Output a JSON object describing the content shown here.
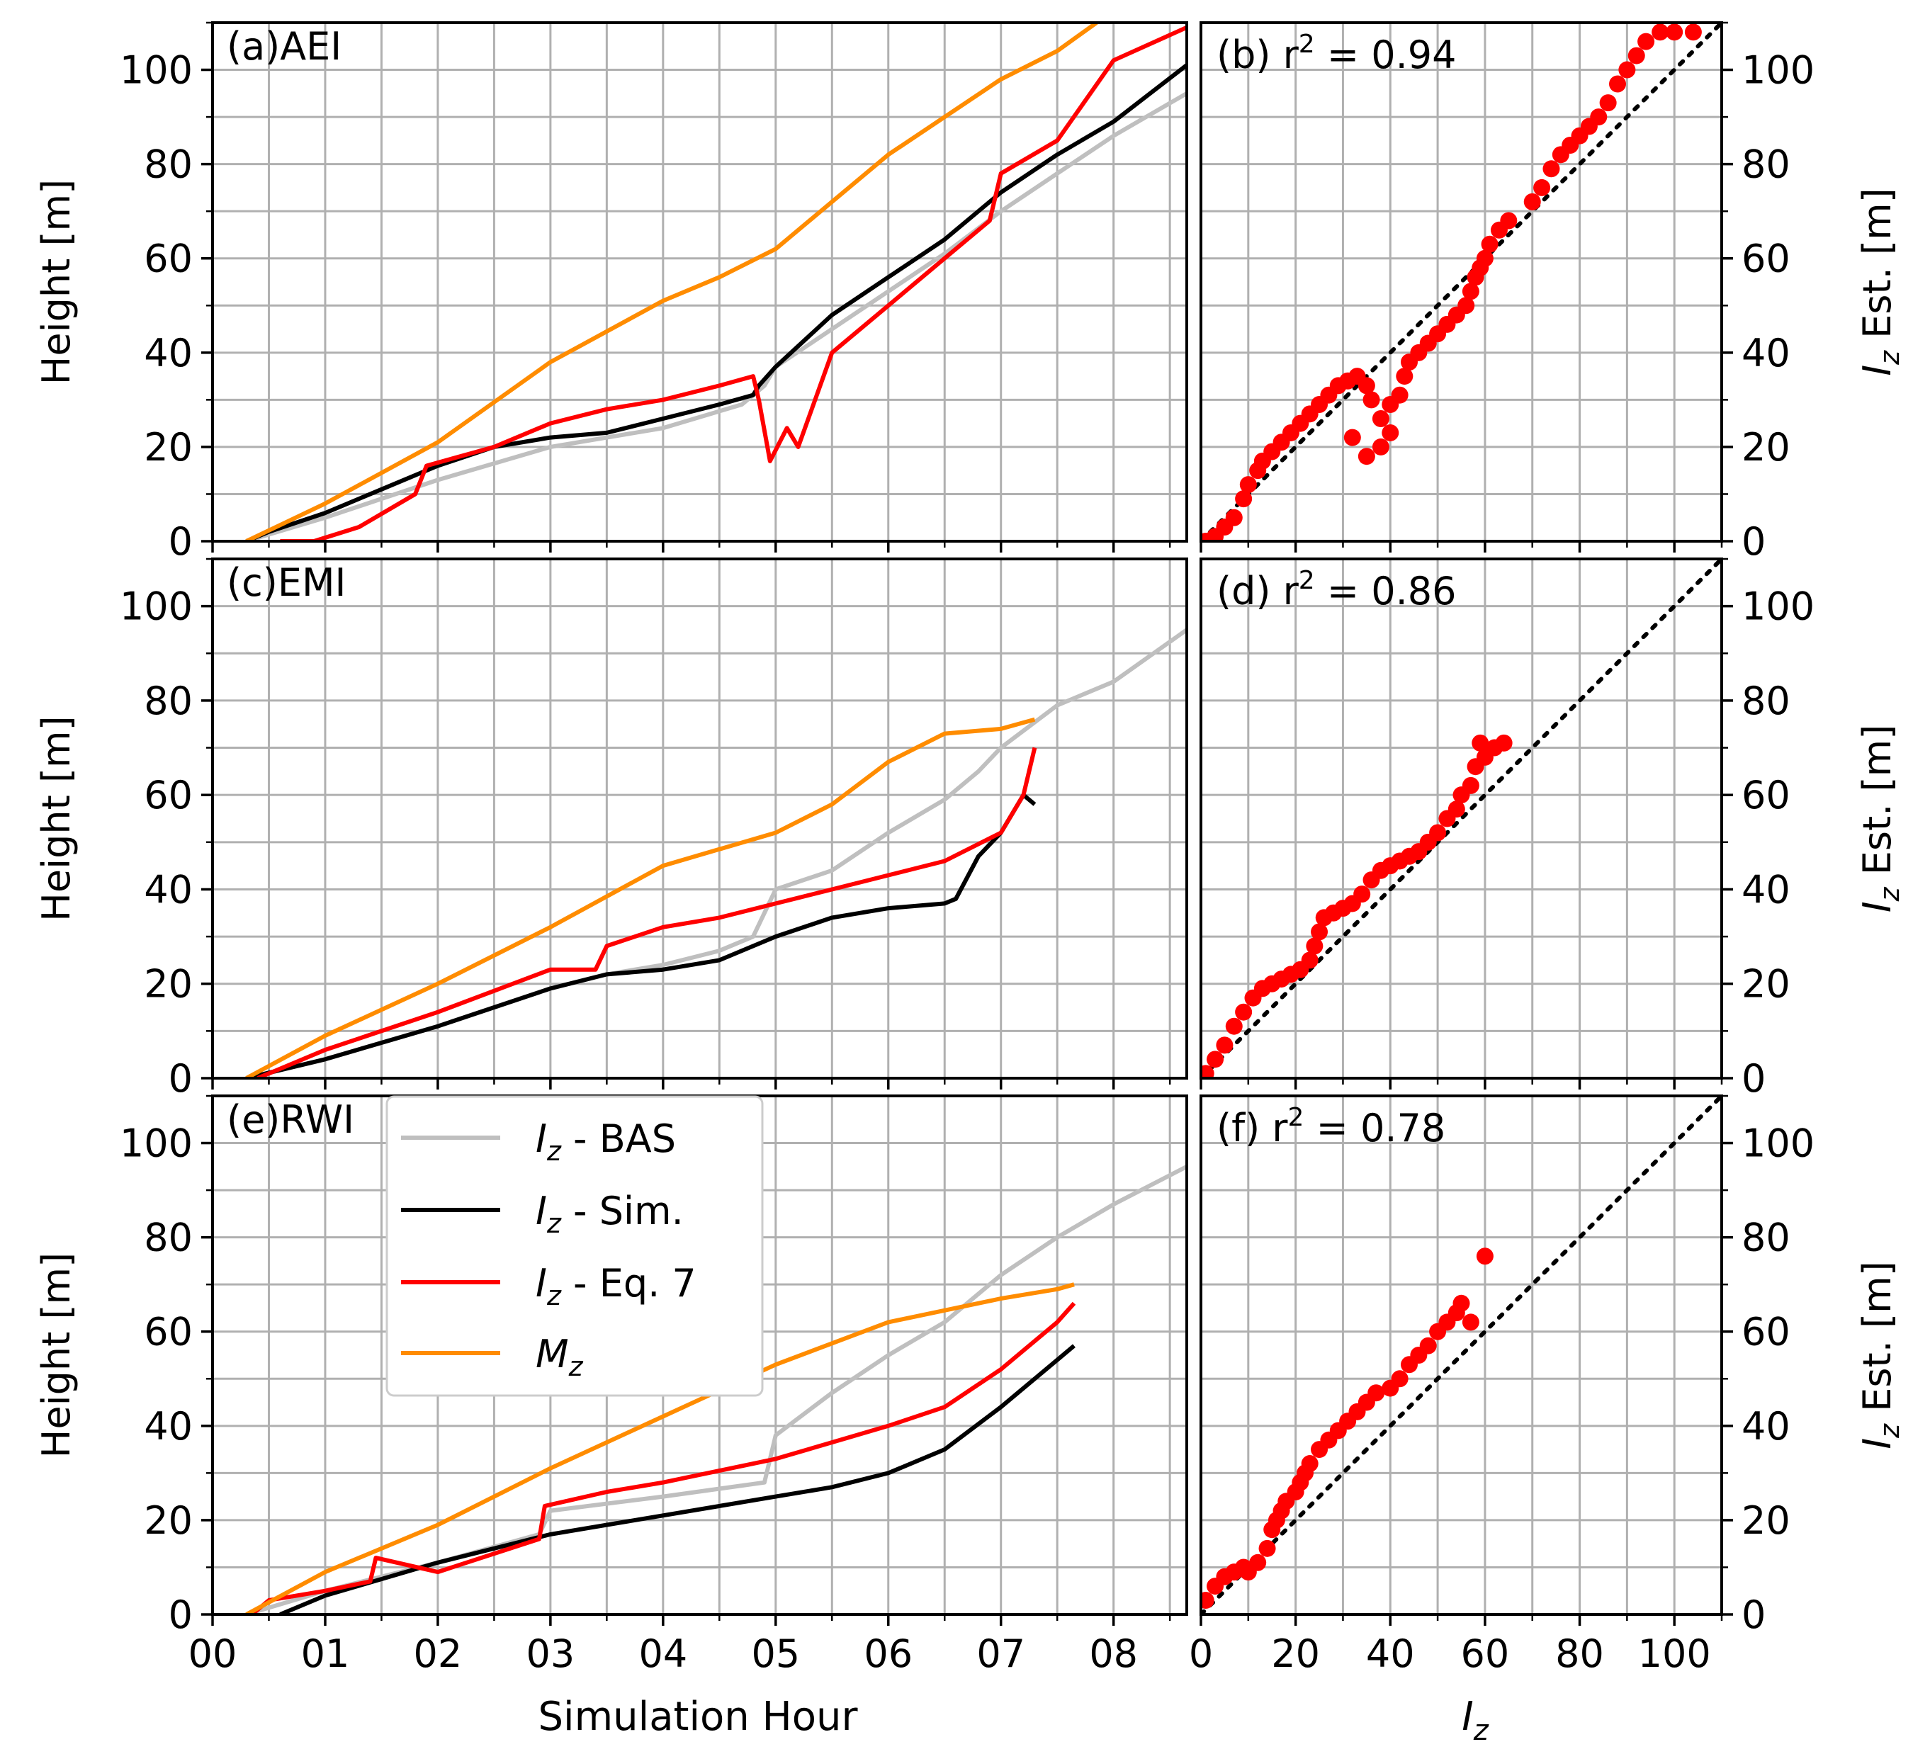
{
  "figure": {
    "xlabel_left": "Simulation Hour",
    "xlabel_right_sym": "I",
    "xlabel_right_sub": "z",
    "ylabel_left": "Height [m]",
    "ylabel_right_sym": "I",
    "ylabel_right_sub": "z",
    "ylabel_right_rest": " Est. [m]",
    "legend": [
      {
        "sym": "I",
        "sub": "z",
        "rest": " - BAS",
        "color": "#bfbfbf"
      },
      {
        "sym": "I",
        "sub": "z",
        "rest": " - Sim.",
        "color": "#000000"
      },
      {
        "sym": "I",
        "sub": "z",
        "rest": " - Eq. 7",
        "color": "#ff0000"
      },
      {
        "sym": "M",
        "sub": "z",
        "rest": "",
        "color": "#ff8c00"
      }
    ],
    "colors": {
      "bas": "#bfbfbf",
      "sim": "#000000",
      "eq7": "#ff0000",
      "mz": "#ff8c00",
      "scatter": "#ff0000",
      "grid": "#b0b0b0"
    }
  },
  "chart_data": [
    {
      "type": "line",
      "panel": "a",
      "title": "(a)AEI",
      "xlabel": "Simulation Hour",
      "ylabel": "Height [m]",
      "xlim": [
        0,
        8.65
      ],
      "ylim": [
        0,
        110
      ],
      "xticks": [
        "00",
        "01",
        "02",
        "03",
        "04",
        "05",
        "06",
        "07",
        "08"
      ],
      "yticks": [
        0,
        20,
        40,
        60,
        80,
        100
      ],
      "series": [
        {
          "name": "Iz - BAS",
          "x": [
            0.3,
            1.0,
            1.5,
            2.0,
            3.0,
            4.0,
            4.7,
            4.9,
            5.0,
            5.5,
            6.0,
            6.5,
            7.0,
            7.5,
            8.0,
            8.65
          ],
          "y": [
            0,
            5,
            9,
            13,
            20,
            24,
            29,
            33,
            37,
            45,
            53,
            61,
            70,
            78,
            86,
            95
          ]
        },
        {
          "name": "Iz - Sim.",
          "x": [
            0.3,
            0.5,
            1.0,
            1.5,
            2.0,
            2.5,
            3.0,
            3.5,
            4.0,
            4.5,
            4.8,
            4.85,
            5.0,
            5.5,
            6.0,
            6.5,
            7.0,
            7.5,
            8.0,
            8.65
          ],
          "y": [
            0,
            2,
            6,
            11,
            16,
            20,
            22,
            23,
            26,
            29,
            31,
            33,
            37,
            48,
            56,
            64,
            74,
            82,
            89,
            101
          ]
        },
        {
          "name": "Iz - Eq. 7",
          "x": [
            0.6,
            0.9,
            1.3,
            1.8,
            1.9,
            2.5,
            3.0,
            3.5,
            4.0,
            4.5,
            4.8,
            4.85,
            4.95,
            5.1,
            5.2,
            5.5,
            6.0,
            6.5,
            6.9,
            7.0,
            7.5,
            8.0,
            8.65
          ],
          "y": [
            0,
            0,
            3,
            10,
            16,
            20,
            25,
            28,
            30,
            33,
            35,
            30,
            17,
            24,
            20,
            40,
            50,
            60,
            68,
            78,
            85,
            102,
            109
          ]
        },
        {
          "name": "Mz",
          "x": [
            0.3,
            1.0,
            2.0,
            3.0,
            4.0,
            4.5,
            5.0,
            6.0,
            7.0,
            7.5,
            7.85
          ],
          "y": [
            0,
            8,
            21,
            38,
            51,
            56,
            62,
            82,
            98,
            104,
            110
          ]
        }
      ]
    },
    {
      "type": "scatter",
      "panel": "b",
      "title": "(b) r² = 0.94",
      "title_prefix": "(b) r",
      "title_sup": "2",
      "title_rest": " = 0.94",
      "xlabel": "Iz",
      "ylabel": "Iz Est. [m]",
      "xlim": [
        0,
        110
      ],
      "ylim": [
        0,
        110
      ],
      "xticks": [
        0,
        20,
        40,
        60,
        80,
        100
      ],
      "yticks": [
        0,
        20,
        40,
        60,
        80,
        100
      ],
      "diagonal": "y = x (dotted)",
      "points": [
        [
          1,
          0
        ],
        [
          3,
          1
        ],
        [
          5,
          3
        ],
        [
          7,
          5
        ],
        [
          9,
          9
        ],
        [
          10,
          12
        ],
        [
          12,
          15
        ],
        [
          13,
          17
        ],
        [
          15,
          19
        ],
        [
          17,
          21
        ],
        [
          19,
          23
        ],
        [
          21,
          25
        ],
        [
          23,
          27
        ],
        [
          25,
          29
        ],
        [
          27,
          31
        ],
        [
          29,
          33
        ],
        [
          31,
          34
        ],
        [
          33,
          35
        ],
        [
          35,
          33
        ],
        [
          36,
          30
        ],
        [
          32,
          22
        ],
        [
          35,
          18
        ],
        [
          38,
          20
        ],
        [
          40,
          23
        ],
        [
          38,
          26
        ],
        [
          40,
          29
        ],
        [
          42,
          31
        ],
        [
          43,
          35
        ],
        [
          44,
          38
        ],
        [
          46,
          40
        ],
        [
          48,
          42
        ],
        [
          50,
          44
        ],
        [
          52,
          46
        ],
        [
          54,
          48
        ],
        [
          56,
          50
        ],
        [
          57,
          53
        ],
        [
          58,
          56
        ],
        [
          59,
          58
        ],
        [
          60,
          60
        ],
        [
          61,
          63
        ],
        [
          63,
          66
        ],
        [
          65,
          68
        ],
        [
          70,
          72
        ],
        [
          72,
          75
        ],
        [
          74,
          79
        ],
        [
          76,
          82
        ],
        [
          78,
          84
        ],
        [
          80,
          86
        ],
        [
          82,
          88
        ],
        [
          84,
          90
        ],
        [
          86,
          93
        ],
        [
          88,
          97
        ],
        [
          90,
          100
        ],
        [
          92,
          103
        ],
        [
          94,
          106
        ],
        [
          97,
          108
        ],
        [
          100,
          108
        ],
        [
          104,
          108
        ]
      ]
    },
    {
      "type": "line",
      "panel": "c",
      "title": "(c)EMI",
      "xlabel": "Simulation Hour",
      "ylabel": "Height [m]",
      "xlim": [
        0,
        8.65
      ],
      "ylim": [
        0,
        110
      ],
      "xticks": [
        "00",
        "01",
        "02",
        "03",
        "04",
        "05",
        "06",
        "07",
        "08"
      ],
      "yticks": [
        0,
        20,
        40,
        60,
        80,
        100
      ],
      "series": [
        {
          "name": "Iz - BAS",
          "x": [
            0.3,
            1.0,
            2.0,
            3.0,
            3.5,
            4.0,
            4.5,
            4.8,
            5.0,
            5.5,
            6.0,
            6.5,
            6.8,
            7.0,
            7.5,
            8.0,
            8.65
          ],
          "y": [
            0,
            4,
            11,
            19,
            22,
            24,
            27,
            30,
            40,
            44,
            52,
            59,
            65,
            70,
            79,
            84,
            95
          ]
        },
        {
          "name": "Iz - Sim.",
          "x": [
            0.3,
            1.0,
            2.0,
            3.0,
            3.5,
            4.0,
            4.5,
            5.0,
            5.5,
            6.0,
            6.5,
            6.6,
            6.8,
            7.0,
            7.2,
            7.3
          ],
          "y": [
            0,
            4,
            11,
            19,
            22,
            23,
            25,
            30,
            34,
            36,
            37,
            38,
            47,
            52,
            60,
            58
          ]
        },
        {
          "name": "Iz - Eq. 7",
          "x": [
            0.4,
            1.0,
            2.0,
            3.0,
            3.4,
            3.5,
            4.0,
            4.5,
            5.0,
            5.5,
            6.0,
            6.5,
            7.0,
            7.2,
            7.3
          ],
          "y": [
            0,
            6,
            14,
            23,
            23,
            28,
            32,
            34,
            37,
            40,
            43,
            46,
            52,
            60,
            70
          ]
        },
        {
          "name": "Mz",
          "x": [
            0.3,
            1.0,
            2.0,
            3.0,
            4.0,
            5.0,
            5.5,
            6.0,
            6.5,
            7.0,
            7.3
          ],
          "y": [
            0,
            9,
            20,
            32,
            45,
            52,
            58,
            67,
            73,
            74,
            76
          ]
        }
      ]
    },
    {
      "type": "scatter",
      "panel": "d",
      "title": "(d) r² = 0.86",
      "title_prefix": "(d) r",
      "title_sup": "2",
      "title_rest": " = 0.86",
      "xlabel": "Iz",
      "ylabel": "Iz Est. [m]",
      "xlim": [
        0,
        110
      ],
      "ylim": [
        0,
        110
      ],
      "xticks": [
        0,
        20,
        40,
        60,
        80,
        100
      ],
      "yticks": [
        0,
        20,
        40,
        60,
        80,
        100
      ],
      "diagonal": "y = x (dotted)",
      "points": [
        [
          1,
          1
        ],
        [
          3,
          4
        ],
        [
          5,
          7
        ],
        [
          7,
          11
        ],
        [
          9,
          14
        ],
        [
          11,
          17
        ],
        [
          13,
          19
        ],
        [
          15,
          20
        ],
        [
          17,
          21
        ],
        [
          19,
          22
        ],
        [
          21,
          23
        ],
        [
          23,
          25
        ],
        [
          24,
          28
        ],
        [
          25,
          31
        ],
        [
          26,
          34
        ],
        [
          28,
          35
        ],
        [
          30,
          36
        ],
        [
          32,
          37
        ],
        [
          34,
          39
        ],
        [
          36,
          42
        ],
        [
          38,
          44
        ],
        [
          40,
          45
        ],
        [
          42,
          46
        ],
        [
          44,
          47
        ],
        [
          46,
          48
        ],
        [
          48,
          50
        ],
        [
          50,
          52
        ],
        [
          52,
          55
        ],
        [
          54,
          57
        ],
        [
          55,
          60
        ],
        [
          57,
          62
        ],
        [
          58,
          66
        ],
        [
          60,
          68
        ],
        [
          62,
          70
        ],
        [
          64,
          71
        ],
        [
          59,
          71
        ]
      ]
    },
    {
      "type": "line",
      "panel": "e",
      "title": "(e)RWI",
      "xlabel": "Simulation Hour",
      "ylabel": "Height [m]",
      "xlim": [
        0,
        8.65
      ],
      "ylim": [
        0,
        110
      ],
      "xticks": [
        "00",
        "01",
        "02",
        "03",
        "04",
        "05",
        "06",
        "07",
        "08"
      ],
      "yticks": [
        0,
        20,
        40,
        60,
        80,
        100
      ],
      "series": [
        {
          "name": "Iz - BAS",
          "x": [
            0.3,
            1.0,
            2.0,
            2.9,
            3.0,
            4.0,
            4.9,
            5.0,
            5.5,
            6.0,
            6.5,
            7.0,
            7.5,
            8.0,
            8.65
          ],
          "y": [
            0,
            5,
            11,
            17,
            22,
            25,
            28,
            38,
            47,
            55,
            62,
            72,
            80,
            87,
            95
          ]
        },
        {
          "name": "Iz - Sim.",
          "x": [
            0.6,
            1.0,
            2.0,
            3.0,
            4.0,
            5.0,
            5.5,
            6.0,
            6.5,
            7.0,
            7.5,
            7.65
          ],
          "y": [
            0,
            4,
            11,
            17,
            21,
            25,
            27,
            30,
            35,
            44,
            54,
            57
          ]
        },
        {
          "name": "Iz - Eq. 7",
          "x": [
            0.35,
            0.5,
            1.0,
            1.4,
            1.45,
            2.0,
            2.9,
            2.95,
            3.5,
            4.0,
            5.0,
            6.0,
            6.5,
            7.0,
            7.5,
            7.65
          ],
          "y": [
            0,
            3,
            5,
            7,
            12,
            9,
            16,
            23,
            26,
            28,
            33,
            40,
            44,
            52,
            62,
            66
          ]
        },
        {
          "name": "Mz",
          "x": [
            0.3,
            1.0,
            2.0,
            3.0,
            4.0,
            5.0,
            6.0,
            7.0,
            7.5,
            7.65
          ],
          "y": [
            0,
            9,
            19,
            31,
            42,
            53,
            62,
            67,
            69,
            70
          ]
        }
      ]
    },
    {
      "type": "scatter",
      "panel": "f",
      "title": "(f) r² = 0.78",
      "title_prefix": "(f) r",
      "title_sup": "2",
      "title_rest": " = 0.78",
      "xlabel": "Iz",
      "ylabel": "Iz Est. [m]",
      "xlim": [
        0,
        110
      ],
      "ylim": [
        0,
        110
      ],
      "xticks": [
        0,
        20,
        40,
        60,
        80,
        100
      ],
      "yticks": [
        0,
        20,
        40,
        60,
        80,
        100
      ],
      "diagonal": "y = x (dotted)",
      "points": [
        [
          1,
          3
        ],
        [
          3,
          6
        ],
        [
          5,
          8
        ],
        [
          7,
          9
        ],
        [
          9,
          10
        ],
        [
          10,
          9
        ],
        [
          12,
          11
        ],
        [
          14,
          14
        ],
        [
          15,
          18
        ],
        [
          16,
          20
        ],
        [
          17,
          22
        ],
        [
          18,
          24
        ],
        [
          20,
          26
        ],
        [
          21,
          28
        ],
        [
          22,
          30
        ],
        [
          23,
          32
        ],
        [
          25,
          35
        ],
        [
          27,
          37
        ],
        [
          29,
          39
        ],
        [
          31,
          41
        ],
        [
          33,
          43
        ],
        [
          35,
          45
        ],
        [
          37,
          47
        ],
        [
          40,
          48
        ],
        [
          42,
          50
        ],
        [
          44,
          53
        ],
        [
          46,
          55
        ],
        [
          48,
          57
        ],
        [
          50,
          60
        ],
        [
          52,
          62
        ],
        [
          54,
          64
        ],
        [
          55,
          66
        ],
        [
          57,
          62
        ],
        [
          60,
          76
        ]
      ]
    }
  ]
}
